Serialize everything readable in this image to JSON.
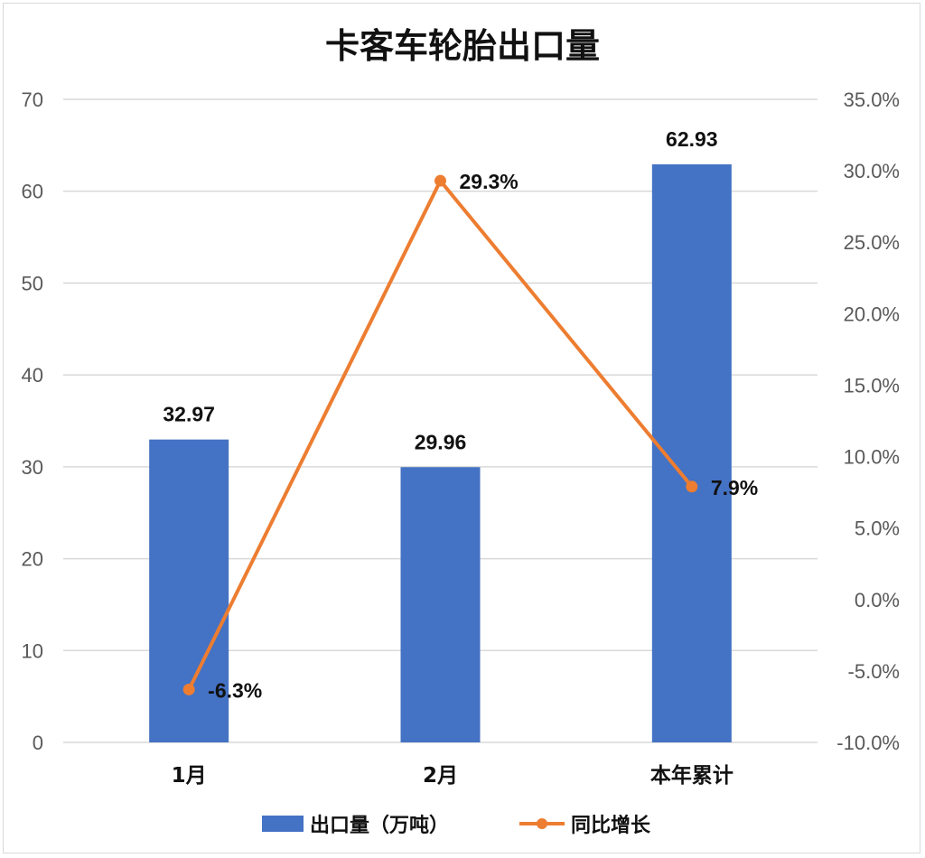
{
  "chart_data": {
    "type": "bar+line",
    "title": "卡客车轮胎出口量",
    "categories": [
      "1月",
      "2月",
      "本年累计"
    ],
    "series": [
      {
        "name": "出口量（万吨）",
        "type": "bar",
        "axis": "left",
        "color": "#4472c4",
        "values": [
          32.97,
          29.96,
          62.93
        ],
        "labels": [
          "32.97",
          "29.96",
          "62.93"
        ]
      },
      {
        "name": "同比增长",
        "type": "line",
        "axis": "right",
        "color": "#ed7d31",
        "values": [
          -6.3,
          29.3,
          7.9
        ],
        "labels": [
          "-6.3%",
          "29.3%",
          "7.9%"
        ]
      }
    ],
    "y_left": {
      "min": 0,
      "max": 70,
      "ticks": [
        "0",
        "10",
        "20",
        "30",
        "40",
        "50",
        "60",
        "70"
      ]
    },
    "y_right": {
      "min": -10,
      "max": 35,
      "ticks": [
        "-10.0%",
        "-5.0%",
        "0.0%",
        "5.0%",
        "10.0%",
        "15.0%",
        "20.0%",
        "25.0%",
        "30.0%",
        "35.0%"
      ]
    },
    "grid": true,
    "legend_position": "bottom"
  }
}
